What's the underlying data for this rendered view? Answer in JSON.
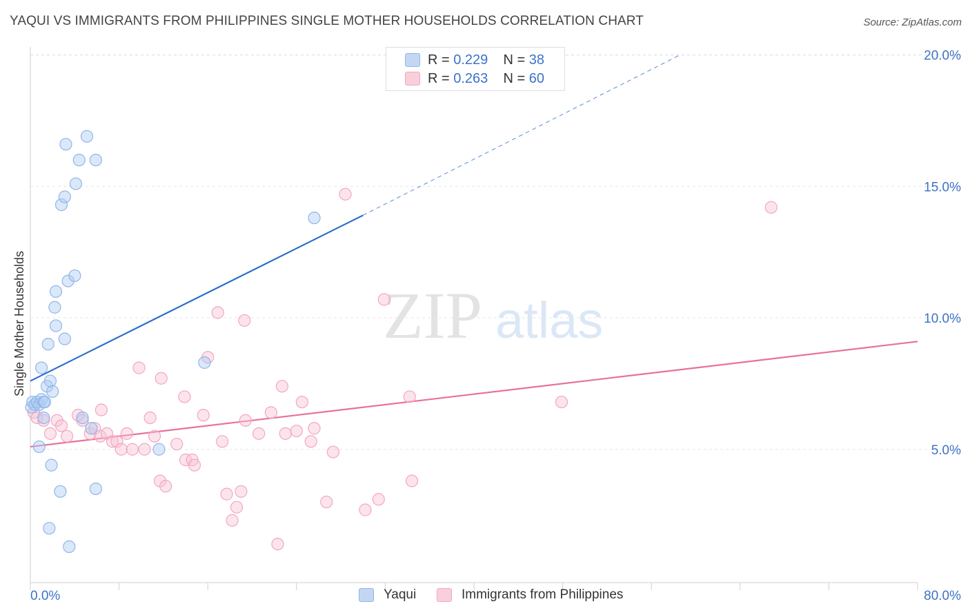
{
  "title": "YAQUI VS IMMIGRANTS FROM PHILIPPINES SINGLE MOTHER HOUSEHOLDS CORRELATION CHART",
  "source": "Source: ZipAtlas.com",
  "watermark": {
    "zip": "ZIP",
    "atlas": "atlas"
  },
  "legend": {
    "rows": [
      {
        "r_label": "R =",
        "r_value": "0.229",
        "n_label": "N =",
        "n_value": "38"
      },
      {
        "r_label": "R =",
        "r_value": "0.263",
        "n_label": "N =",
        "n_value": "60"
      }
    ]
  },
  "chart_data": {
    "type": "scatter",
    "title": "YAQUI VS IMMIGRANTS FROM PHILIPPINES SINGLE MOTHER HOUSEHOLDS CORRELATION CHART",
    "xlabel": "",
    "ylabel": "Single Mother Households",
    "xlim": [
      0,
      80
    ],
    "ylim": [
      0,
      20
    ],
    "x_tick_labels": [
      "0.0%",
      "80.0%"
    ],
    "y_tick_values": [
      5,
      10,
      15,
      20
    ],
    "y_tick_labels": [
      "5.0%",
      "10.0%",
      "15.0%",
      "20.0%"
    ],
    "grid": true,
    "legend_position": "top-center",
    "series": [
      {
        "name": "Yaqui",
        "color": "#8fb6e8",
        "line_color": "#2c6fcc",
        "r": 0.229,
        "n": 38,
        "trend": {
          "x": [
            0,
            30
          ],
          "y": [
            7.6,
            13.9
          ],
          "dash_to": [
            58.6,
            20.0
          ]
        },
        "points": [
          [
            0.1,
            6.6
          ],
          [
            0.2,
            6.8
          ],
          [
            0.4,
            6.7
          ],
          [
            0.6,
            6.8
          ],
          [
            0.8,
            6.7
          ],
          [
            1.0,
            6.9
          ],
          [
            1.2,
            6.8
          ],
          [
            1.3,
            6.8
          ],
          [
            0.8,
            5.1
          ],
          [
            1.0,
            8.1
          ],
          [
            1.2,
            6.2
          ],
          [
            1.5,
            7.4
          ],
          [
            1.8,
            7.6
          ],
          [
            2.0,
            7.2
          ],
          [
            1.6,
            9.0
          ],
          [
            2.3,
            9.7
          ],
          [
            2.2,
            10.4
          ],
          [
            2.3,
            11.0
          ],
          [
            3.4,
            11.4
          ],
          [
            4.0,
            11.6
          ],
          [
            3.1,
            9.2
          ],
          [
            2.8,
            14.3
          ],
          [
            3.1,
            14.6
          ],
          [
            4.1,
            15.1
          ],
          [
            4.4,
            16.0
          ],
          [
            3.2,
            16.6
          ],
          [
            5.1,
            16.9
          ],
          [
            5.9,
            16.0
          ],
          [
            1.9,
            4.4
          ],
          [
            2.7,
            3.4
          ],
          [
            1.7,
            2.0
          ],
          [
            3.5,
            1.3
          ],
          [
            5.9,
            3.5
          ],
          [
            4.7,
            6.2
          ],
          [
            5.5,
            5.8
          ],
          [
            11.6,
            5.0
          ],
          [
            15.7,
            8.3
          ],
          [
            25.6,
            13.8
          ]
        ]
      },
      {
        "name": "Immigrants from Philippines",
        "color": "#f3a6be",
        "line_color": "#e8709a",
        "r": 0.263,
        "n": 60,
        "trend": {
          "x": [
            0,
            80
          ],
          "y": [
            5.1,
            9.1
          ]
        },
        "points": [
          [
            0.3,
            6.4
          ],
          [
            0.6,
            6.2
          ],
          [
            1.2,
            6.1
          ],
          [
            1.8,
            5.6
          ],
          [
            2.4,
            6.1
          ],
          [
            2.8,
            5.9
          ],
          [
            3.3,
            5.5
          ],
          [
            4.3,
            6.3
          ],
          [
            4.7,
            6.1
          ],
          [
            5.4,
            5.6
          ],
          [
            5.8,
            5.8
          ],
          [
            6.3,
            5.5
          ],
          [
            6.4,
            6.5
          ],
          [
            6.9,
            5.6
          ],
          [
            7.4,
            5.3
          ],
          [
            7.8,
            5.3
          ],
          [
            8.2,
            5.0
          ],
          [
            8.7,
            5.6
          ],
          [
            9.2,
            5.0
          ],
          [
            10.3,
            5.0
          ],
          [
            10.8,
            6.2
          ],
          [
            11.2,
            5.5
          ],
          [
            9.8,
            8.1
          ],
          [
            11.8,
            7.7
          ],
          [
            11.7,
            3.8
          ],
          [
            12.2,
            3.6
          ],
          [
            13.2,
            5.2
          ],
          [
            13.9,
            7.0
          ],
          [
            14.0,
            4.6
          ],
          [
            14.6,
            4.6
          ],
          [
            14.8,
            4.4
          ],
          [
            15.6,
            6.3
          ],
          [
            16.0,
            8.5
          ],
          [
            16.9,
            10.2
          ],
          [
            17.3,
            5.3
          ],
          [
            17.7,
            3.3
          ],
          [
            18.2,
            2.3
          ],
          [
            18.6,
            2.8
          ],
          [
            19.0,
            3.4
          ],
          [
            19.4,
            6.1
          ],
          [
            19.3,
            9.9
          ],
          [
            20.6,
            5.6
          ],
          [
            21.7,
            6.4
          ],
          [
            22.3,
            1.4
          ],
          [
            22.7,
            7.4
          ],
          [
            23.0,
            5.6
          ],
          [
            24.0,
            5.7
          ],
          [
            24.5,
            6.8
          ],
          [
            25.3,
            5.3
          ],
          [
            25.6,
            5.8
          ],
          [
            26.7,
            3.0
          ],
          [
            27.3,
            4.9
          ],
          [
            28.4,
            14.7
          ],
          [
            30.2,
            2.7
          ],
          [
            31.4,
            3.1
          ],
          [
            31.9,
            10.7
          ],
          [
            34.2,
            7.0
          ],
          [
            34.4,
            3.8
          ],
          [
            47.9,
            6.8
          ],
          [
            66.8,
            14.2
          ]
        ]
      }
    ]
  }
}
